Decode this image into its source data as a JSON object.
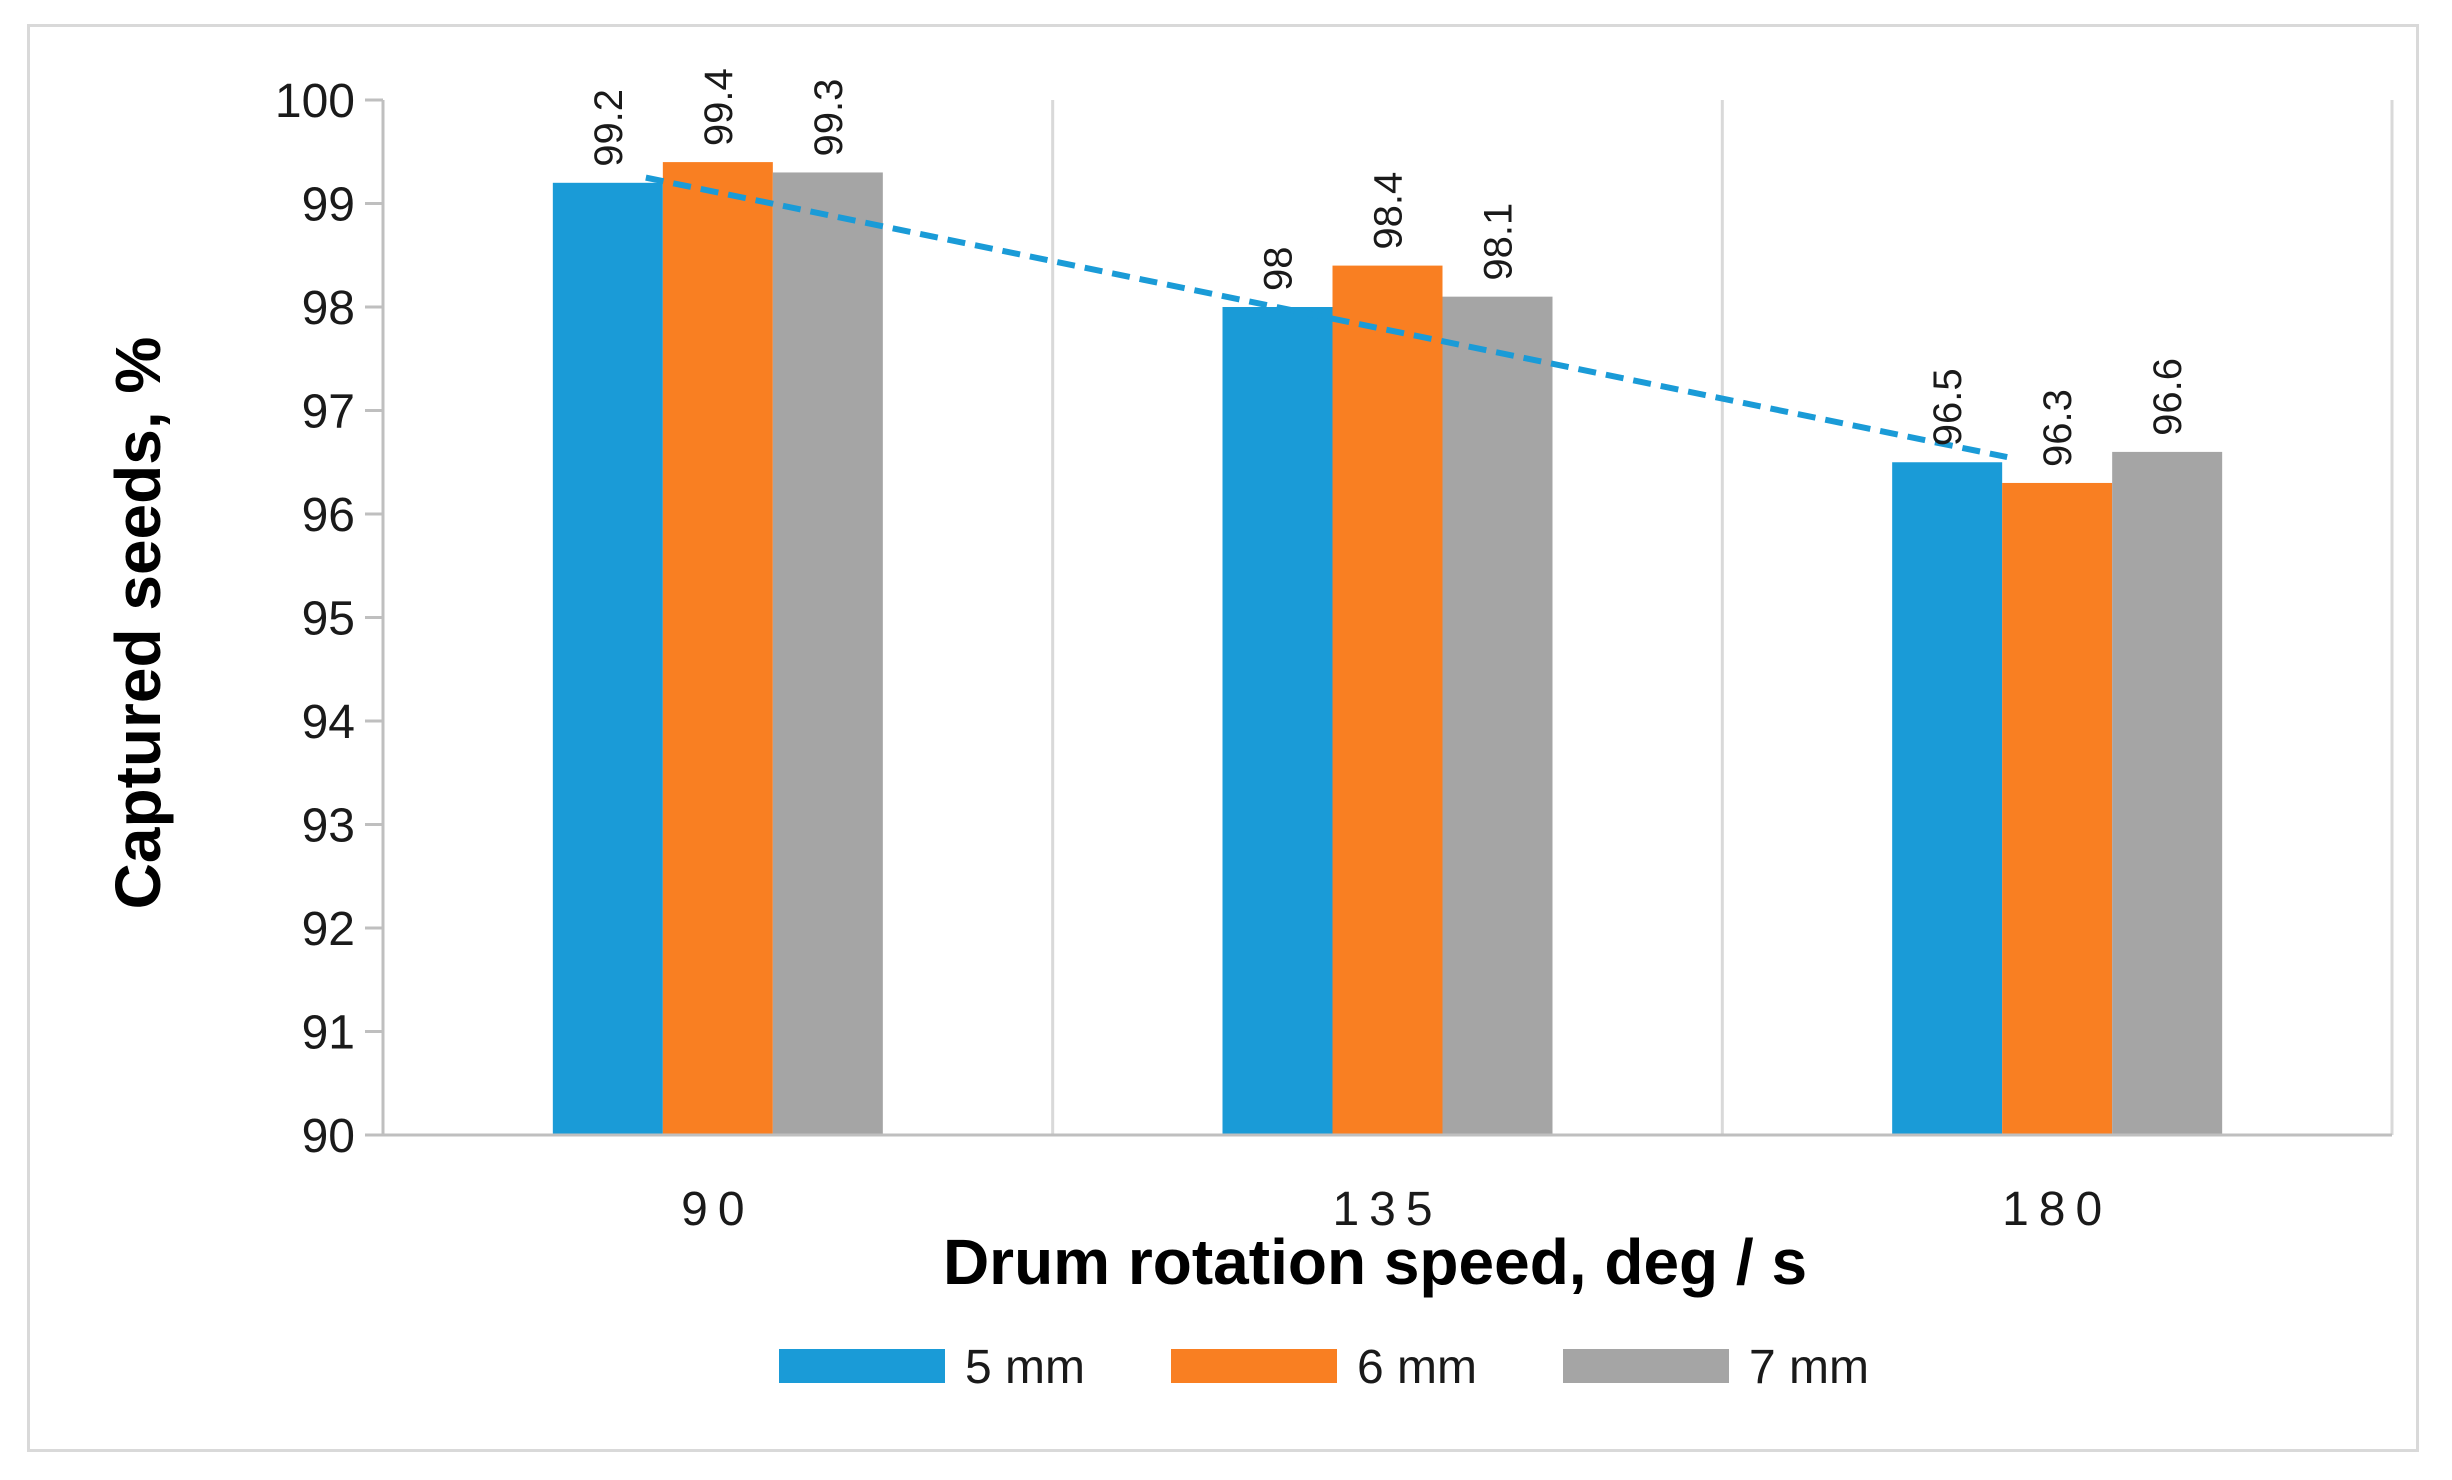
{
  "chart_data": {
    "type": "bar",
    "title": "",
    "xlabel": "Drum rotation speed, deg / s",
    "ylabel": "Captured seeds, %",
    "categories": [
      "90",
      "135",
      "180"
    ],
    "ylim": [
      90,
      100
    ],
    "yticks": [
      90,
      91,
      92,
      93,
      94,
      95,
      96,
      97,
      98,
      99,
      100
    ],
    "grid": "vertical separators between categories",
    "series": [
      {
        "name": "5 mm",
        "color": "#1a9bd7",
        "values": [
          99.2,
          98,
          96.5
        ],
        "labels": [
          "99.2",
          "98",
          "96.5"
        ]
      },
      {
        "name": "6 mm",
        "color": "#f97f22",
        "values": [
          99.4,
          98.4,
          96.3
        ],
        "labels": [
          "99.4",
          "98.4",
          "96.3"
        ]
      },
      {
        "name": "7 mm",
        "color": "#a5a5a5",
        "values": [
          99.3,
          98.1,
          96.6
        ],
        "labels": [
          "99.3",
          "98.1",
          "96.6"
        ]
      }
    ],
    "trendline": {
      "series": "5 mm",
      "style": "dashed",
      "color": "#1a9bd7"
    },
    "legend": "bottom-center"
  }
}
